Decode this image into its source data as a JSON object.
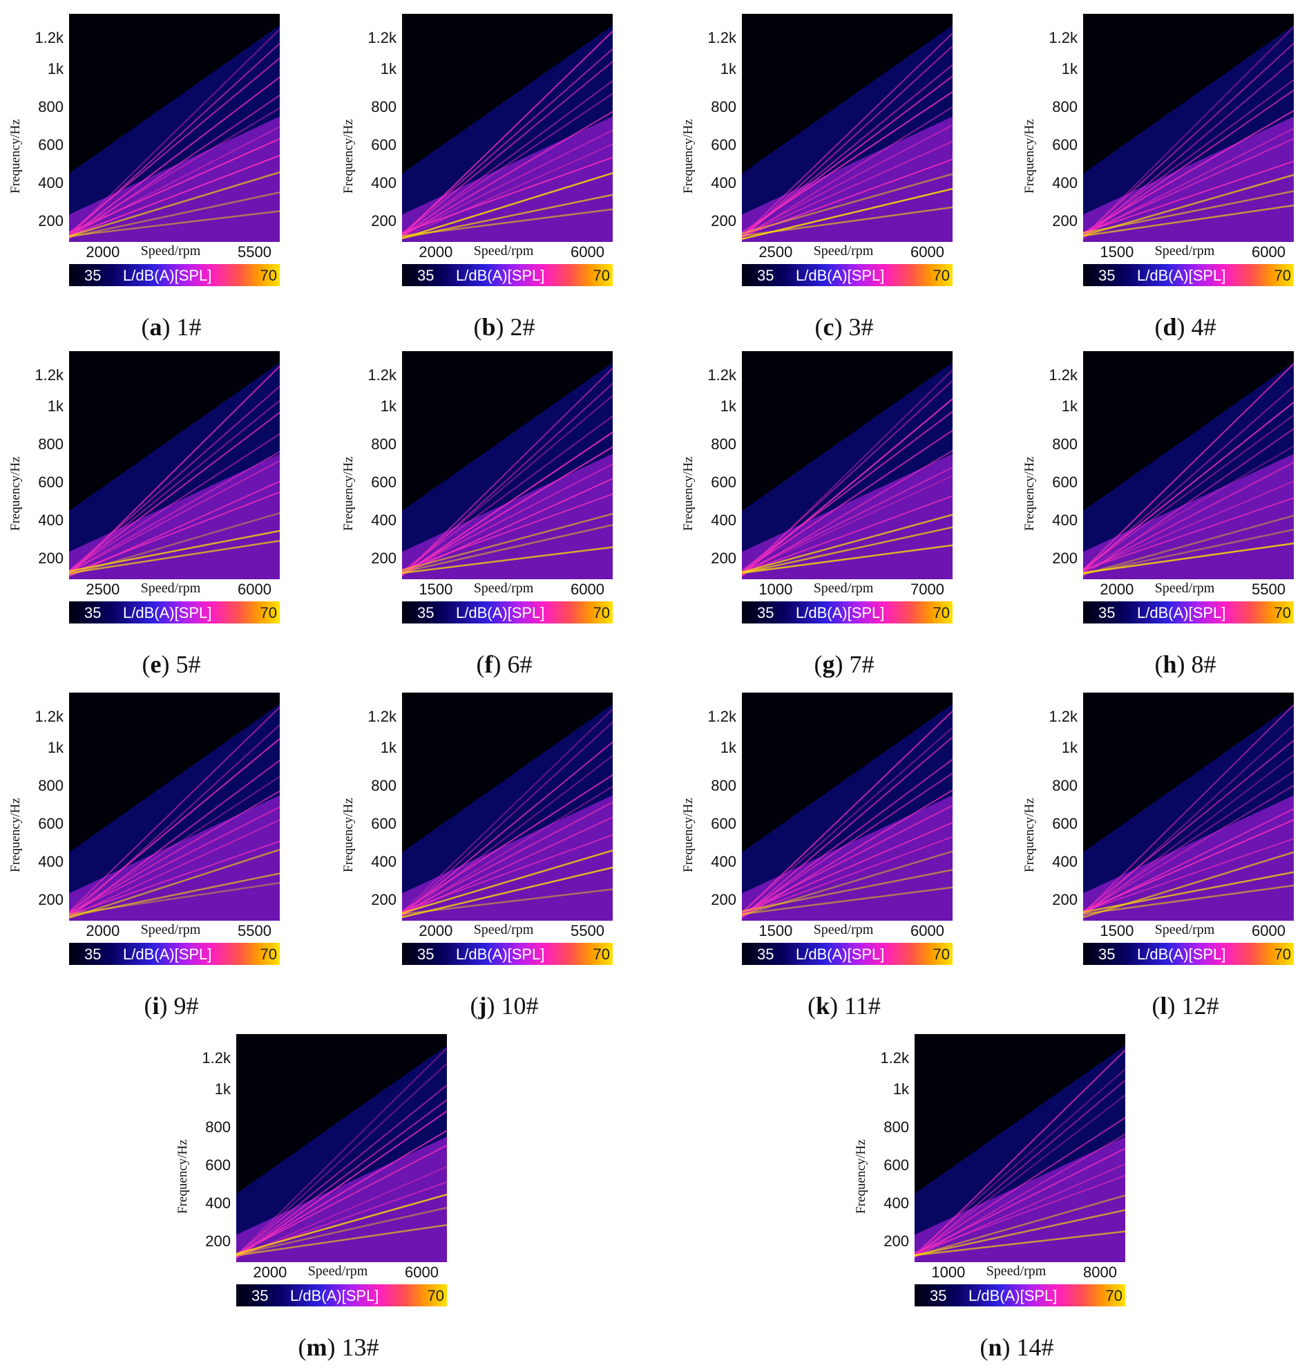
{
  "figure": {
    "colors": {
      "background": "#000008",
      "low": "#0a0a80",
      "mid": "#c020f0",
      "high": "#ff30c0",
      "hot": "#ffe000"
    }
  },
  "chart_data": [
    {
      "type": "heatmap",
      "letter": "a",
      "name": "1#",
      "ylabel": "Frequency/Hz",
      "yticks": [
        "200",
        "400",
        "600",
        "800",
        "1k",
        "1.2k"
      ],
      "xlabel": "Speed/rpm",
      "xticks": [
        "2000",
        "5500"
      ],
      "colorbar": {
        "min": "35",
        "max": "70",
        "label": "L/dB(A)[SPL]"
      }
    },
    {
      "type": "heatmap",
      "letter": "b",
      "name": "2#",
      "ylabel": "Frequency/Hz",
      "yticks": [
        "200",
        "400",
        "600",
        "800",
        "1k",
        "1.2k"
      ],
      "xlabel": "Speed/rpm",
      "xticks": [
        "2000",
        "6000"
      ],
      "colorbar": {
        "min": "35",
        "max": "70",
        "label": "L/dB(A)[SPL]"
      }
    },
    {
      "type": "heatmap",
      "letter": "c",
      "name": "3#",
      "ylabel": "Frequency/Hz",
      "yticks": [
        "200",
        "400",
        "600",
        "800",
        "1k",
        "1.2k"
      ],
      "xlabel": "Speed/rpm",
      "xticks": [
        "2500",
        "6000"
      ],
      "colorbar": {
        "min": "35",
        "max": "70",
        "label": "L/dB(A)[SPL]"
      }
    },
    {
      "type": "heatmap",
      "letter": "d",
      "name": "4#",
      "ylabel": "Frequency/Hz",
      "yticks": [
        "200",
        "400",
        "600",
        "800",
        "1k",
        "1.2k"
      ],
      "xlabel": "Speed/rpm",
      "xticks": [
        "1500",
        "6000"
      ],
      "colorbar": {
        "min": "35",
        "max": "70",
        "label": "L/dB(A)[SPL]"
      }
    },
    {
      "type": "heatmap",
      "letter": "e",
      "name": "5#",
      "ylabel": "Frequency/Hz",
      "yticks": [
        "200",
        "400",
        "600",
        "800",
        "1k",
        "1.2k"
      ],
      "xlabel": "Speed/rpm",
      "xticks": [
        "2500",
        "6000"
      ],
      "colorbar": {
        "min": "35",
        "max": "70",
        "label": "L/dB(A)[SPL]"
      }
    },
    {
      "type": "heatmap",
      "letter": "f",
      "name": "6#",
      "ylabel": "Frequency/Hz",
      "yticks": [
        "200",
        "400",
        "600",
        "800",
        "1k",
        "1.2k"
      ],
      "xlabel": "Speed/rpm",
      "xticks": [
        "1500",
        "6000"
      ],
      "colorbar": {
        "min": "35",
        "max": "70",
        "label": "L/dB(A)[SPL]"
      }
    },
    {
      "type": "heatmap",
      "letter": "g",
      "name": "7#",
      "ylabel": "Frequency/Hz",
      "yticks": [
        "200",
        "400",
        "600",
        "800",
        "1k",
        "1.2k"
      ],
      "xlabel": "Speed/rpm",
      "xticks": [
        "1000",
        "7000"
      ],
      "colorbar": {
        "min": "35",
        "max": "70",
        "label": "L/dB(A)[SPL]"
      }
    },
    {
      "type": "heatmap",
      "letter": "h",
      "name": "8#",
      "ylabel": "Frequency/Hz",
      "yticks": [
        "200",
        "400",
        "600",
        "800",
        "1k",
        "1.2k"
      ],
      "xlabel": "Speed/rpm",
      "xticks": [
        "2000",
        "5500"
      ],
      "colorbar": {
        "min": "35",
        "max": "70",
        "label": "L/dB(A)[SPL]"
      }
    },
    {
      "type": "heatmap",
      "letter": "i",
      "name": "9#",
      "ylabel": "Frequency/Hz",
      "yticks": [
        "200",
        "400",
        "600",
        "800",
        "1k",
        "1.2k"
      ],
      "xlabel": "Speed/rpm",
      "xticks": [
        "2000",
        "5500"
      ],
      "colorbar": {
        "min": "35",
        "max": "70",
        "label": "L/dB(A)[SPL]"
      }
    },
    {
      "type": "heatmap",
      "letter": "j",
      "name": "10#",
      "ylabel": "Frequency/Hz",
      "yticks": [
        "200",
        "400",
        "600",
        "800",
        "1k",
        "1.2k"
      ],
      "xlabel": "Speed/rpm",
      "xticks": [
        "2000",
        "5500"
      ],
      "colorbar": {
        "min": "35",
        "max": "70",
        "label": "L/dB(A)[SPL]"
      }
    },
    {
      "type": "heatmap",
      "letter": "k",
      "name": "11#",
      "ylabel": "Frequency/Hz",
      "yticks": [
        "200",
        "400",
        "600",
        "800",
        "1k",
        "1.2k"
      ],
      "xlabel": "Speed/rpm",
      "xticks": [
        "1500",
        "6000"
      ],
      "colorbar": {
        "min": "35",
        "max": "70",
        "label": "L/dB(A)[SPL]"
      }
    },
    {
      "type": "heatmap",
      "letter": "l",
      "name": "12#",
      "ylabel": "Frequency/Hz",
      "yticks": [
        "200",
        "400",
        "600",
        "800",
        "1k",
        "1.2k"
      ],
      "xlabel": "Speed/rpm",
      "xticks": [
        "1500",
        "6000"
      ],
      "colorbar": {
        "min": "35",
        "max": "70",
        "label": "L/dB(A)[SPL]"
      }
    },
    {
      "type": "heatmap",
      "letter": "m",
      "name": "13#",
      "ylabel": "Frequency/Hz",
      "yticks": [
        "200",
        "400",
        "600",
        "800",
        "1k",
        "1.2k"
      ],
      "xlabel": "Speed/rpm",
      "xticks": [
        "2000",
        "6000"
      ],
      "colorbar": {
        "min": "35",
        "max": "70",
        "label": "L/dB(A)[SPL]"
      }
    },
    {
      "type": "heatmap",
      "letter": "n",
      "name": "14#",
      "ylabel": "Frequency/Hz",
      "yticks": [
        "200",
        "400",
        "600",
        "800",
        "1k",
        "1.2k"
      ],
      "xlabel": "Speed/rpm",
      "xticks": [
        "1000",
        "8000"
      ],
      "colorbar": {
        "min": "35",
        "max": "70",
        "label": "L/dB(A)[SPL]"
      }
    }
  ]
}
